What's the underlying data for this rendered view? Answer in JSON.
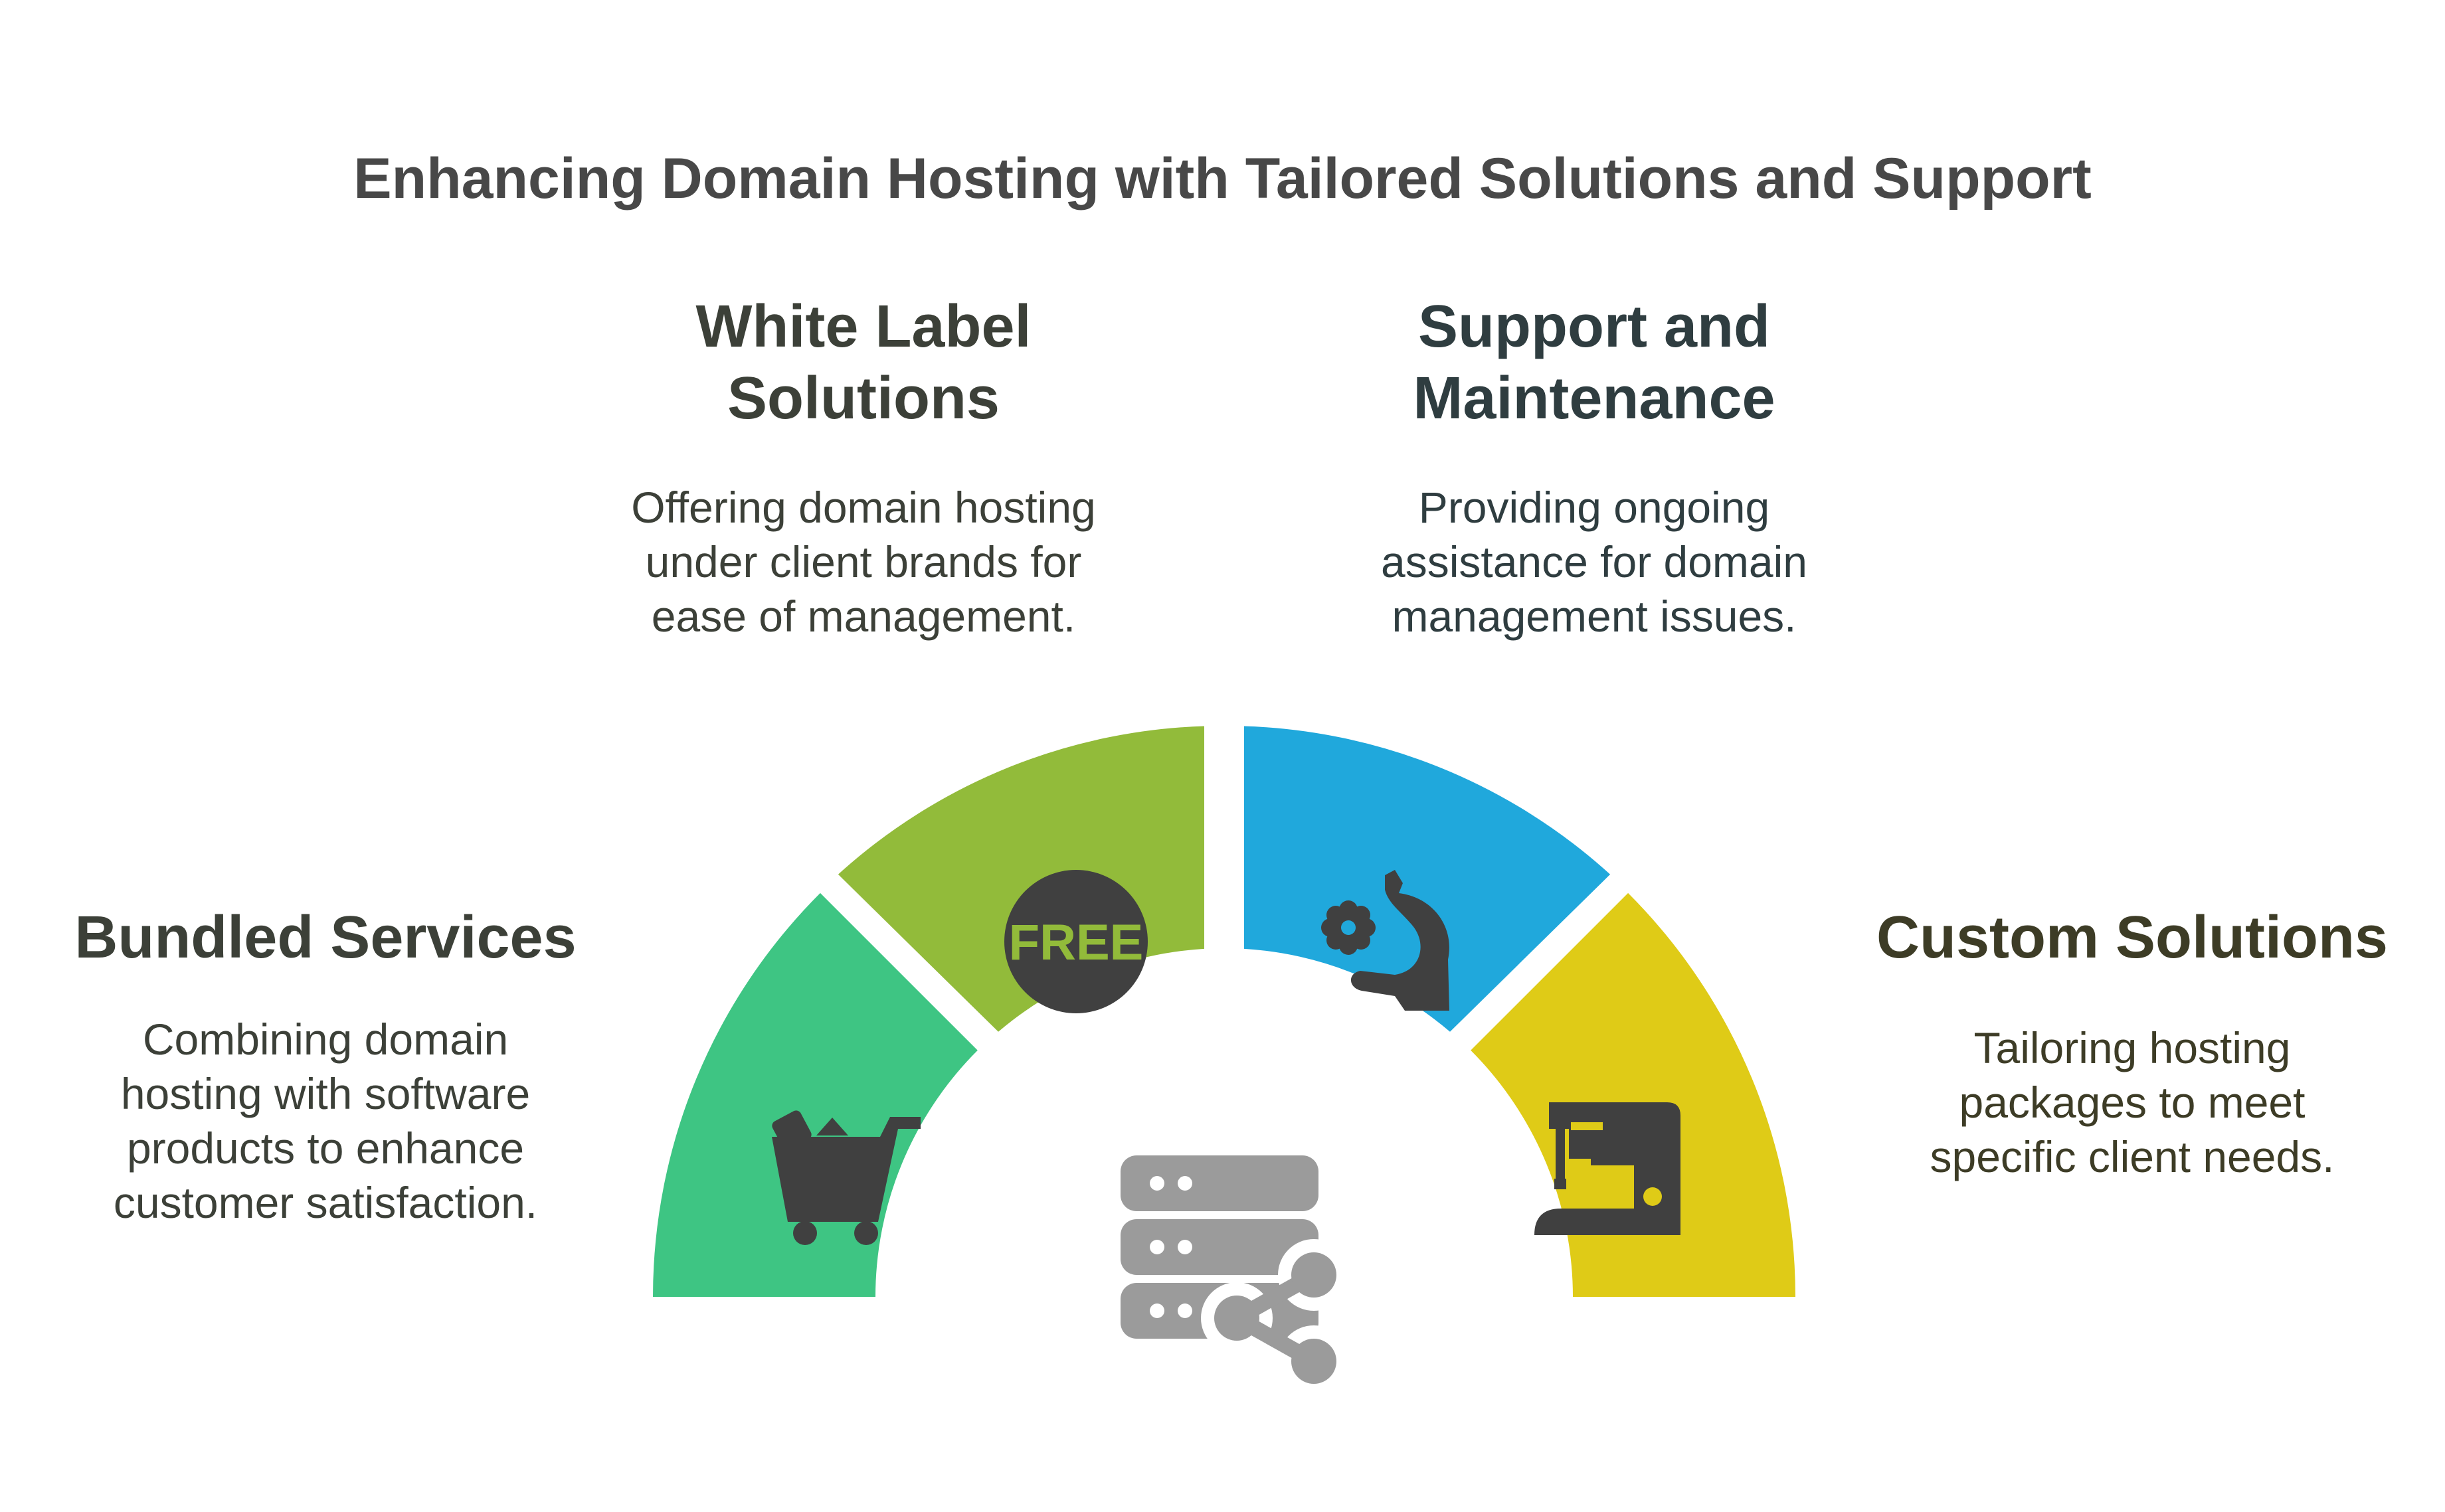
{
  "title": "Enhancing Domain Hosting with Tailored Solutions and Support",
  "segments": [
    {
      "id": "bundled",
      "heading": "Bundled Services",
      "description_lines": [
        "Combining domain",
        "hosting with software",
        "products to enhance",
        "customer satisfaction."
      ],
      "color": "#3ec583",
      "icon": "shopping-cart-icon"
    },
    {
      "id": "white-label",
      "heading_lines": [
        "White Label",
        "Solutions"
      ],
      "description_lines": [
        "Offering domain hosting",
        "under client brands for",
        "ease of management."
      ],
      "color": "#92bb3a",
      "icon": "free-badge-icon",
      "icon_text": "FREE"
    },
    {
      "id": "support",
      "heading_lines": [
        "Support and",
        "Maintenance"
      ],
      "description_lines": [
        "Providing ongoing",
        "assistance for domain",
        "management issues."
      ],
      "color": "#20a8dc",
      "icon": "helping-hand-gear-icon"
    },
    {
      "id": "custom",
      "heading": "Custom Solutions",
      "description_lines": [
        "Tailoring hosting",
        "packages to meet",
        "specific client needs."
      ],
      "color": "#dfcb17",
      "icon": "sewing-machine-icon"
    }
  ],
  "center_icon": "server-share-icon"
}
